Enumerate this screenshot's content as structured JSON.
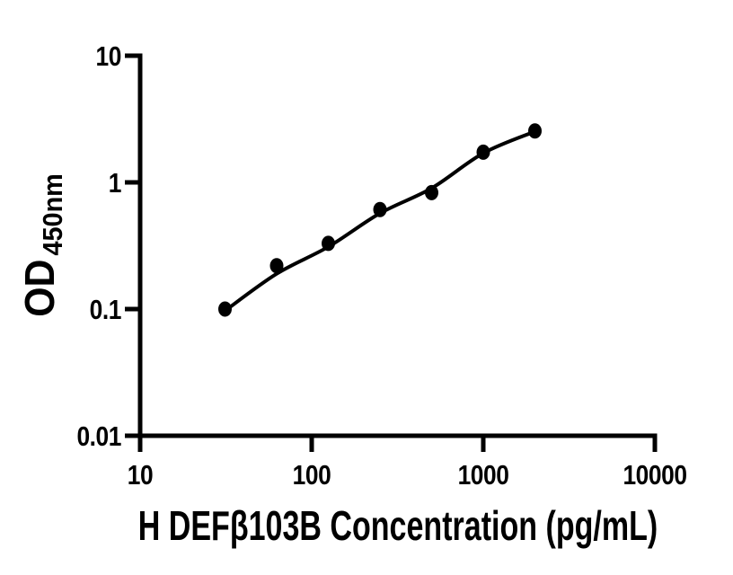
{
  "figure": {
    "background_color": "#ffffff",
    "ink_color": "#000000"
  },
  "chart_data": {
    "type": "scatter",
    "description": "ELISA standard curve, filled black circles with fitted line on log-log axes",
    "title": "",
    "xlabel": "H DEFβ103B Concentration (pg/mL)",
    "ylabel": "OD450nm",
    "ylabel_main": "OD",
    "ylabel_sub": "450nm",
    "x_scale": "log10",
    "y_scale": "log10",
    "xlim": [
      10,
      10000
    ],
    "ylim": [
      0.01,
      10
    ],
    "x_tick_values": [
      10,
      100,
      1000,
      10000
    ],
    "x_tick_labels": [
      "10",
      "100",
      "1000",
      "10000"
    ],
    "y_tick_values": [
      10,
      1,
      0.1,
      0.01
    ],
    "y_tick_labels": [
      "10",
      "1",
      "0.1",
      "0.01"
    ],
    "grid": false,
    "legend": "none",
    "marker": "filled-circle",
    "marker_color": "#000000",
    "line_color": "#000000",
    "series": [
      {
        "name": "standard-points",
        "type": "points",
        "x": [
          31.25,
          62.5,
          125,
          250,
          500,
          1000,
          2000
        ],
        "y": [
          0.1,
          0.22,
          0.33,
          0.61,
          0.83,
          1.73,
          2.55
        ]
      },
      {
        "name": "fit-line",
        "type": "line",
        "x": [
          31.25,
          62.5,
          125,
          250,
          500,
          1000,
          2000
        ],
        "y": [
          0.097,
          0.19,
          0.31,
          0.57,
          0.9,
          1.7,
          2.52
        ]
      }
    ]
  }
}
